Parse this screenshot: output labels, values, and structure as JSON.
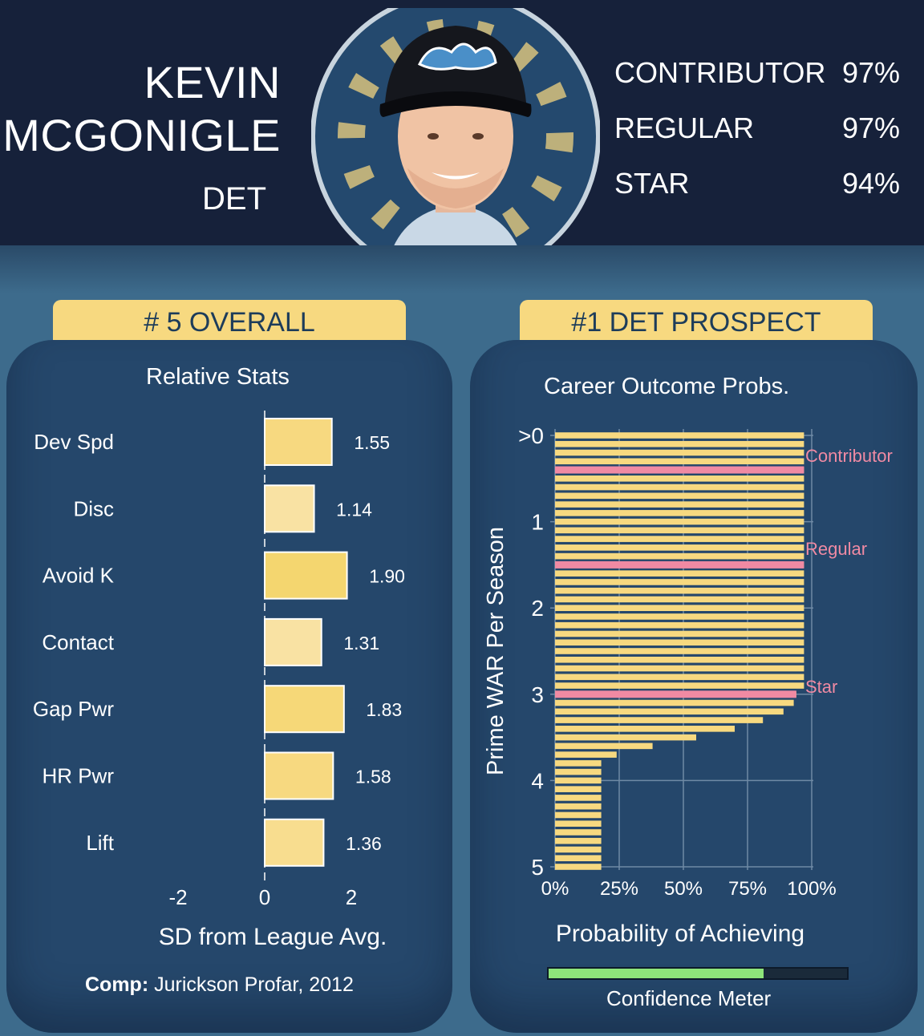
{
  "player": {
    "first_name": "KEVIN",
    "last_name": "MCGONIGLE",
    "team": "DET"
  },
  "outcome_probs": [
    {
      "label": "CONTRIBUTOR",
      "value": "97%"
    },
    {
      "label": "REGULAR",
      "value": "97%"
    },
    {
      "label": "STAR",
      "value": "94%"
    }
  ],
  "tabs": {
    "overall": "# 5 OVERALL",
    "team_rank": "#1 DET PROSPECT"
  },
  "comp": {
    "label": "Comp:",
    "value": "Jurickson Profar, 2012"
  },
  "confidence": {
    "label": "Confidence Meter",
    "value": 0.72
  },
  "colors": {
    "header_bg": "#16213a",
    "card_bg": "#25476b",
    "page_bg": "#3d6b8c",
    "bar_yellow": "#f7d980",
    "threshold_pink": "#f08aa3",
    "meter_green": "#8ee57a"
  },
  "chart_data": [
    {
      "type": "bar",
      "orientation": "horizontal",
      "title": "Relative Stats",
      "xlabel": "SD from League Avg.",
      "categories": [
        "Dev Spd",
        "Disc",
        "Avoid K",
        "Contact",
        "Gap Pwr",
        "HR Pwr",
        "Lift"
      ],
      "values": [
        1.55,
        1.14,
        1.9,
        1.31,
        1.83,
        1.58,
        1.36
      ],
      "value_labels": [
        "1.55",
        "1.14",
        "1.90",
        "1.31",
        "1.83",
        "1.58",
        "1.36"
      ],
      "xticks": [
        "-2",
        "0",
        "2"
      ],
      "xlim": [
        -2,
        2
      ],
      "bar_colors": [
        "#f7d980",
        "#f9e2a3",
        "#f4d66f",
        "#f9e2a3",
        "#f6d878",
        "#f7d980",
        "#f8dd8f"
      ],
      "grid": false
    },
    {
      "type": "bar",
      "orientation": "horizontal",
      "title": "Career Outcome Probs.",
      "xlabel": "Probability of Achieving",
      "ylabel": "Prime WAR Per Season",
      "xticks": [
        "0%",
        "25%",
        "50%",
        "75%",
        "100%"
      ],
      "yticks": [
        ">0",
        "1",
        "2",
        "3",
        "4",
        "5"
      ],
      "xlim": [
        0,
        1
      ],
      "ylim": [
        0,
        5
      ],
      "war": [
        0,
        0.1,
        0.2,
        0.3,
        0.4,
        0.5,
        0.6,
        0.7,
        0.8,
        0.9,
        1.0,
        1.1,
        1.2,
        1.3,
        1.4,
        1.5,
        1.6,
        1.7,
        1.8,
        1.9,
        2.0,
        2.1,
        2.2,
        2.3,
        2.4,
        2.5,
        2.6,
        2.7,
        2.8,
        2.9,
        3.0,
        3.1,
        3.2,
        3.3,
        3.4,
        3.5,
        3.6,
        3.7,
        3.8,
        3.9,
        4.0,
        4.1,
        4.2,
        4.3,
        4.4,
        4.5,
        4.6,
        4.7,
        4.8,
        4.9,
        5.0
      ],
      "probability": [
        0.97,
        0.97,
        0.97,
        0.97,
        0.97,
        0.97,
        0.97,
        0.97,
        0.97,
        0.97,
        0.97,
        0.97,
        0.97,
        0.97,
        0.97,
        0.97,
        0.97,
        0.97,
        0.97,
        0.97,
        0.97,
        0.97,
        0.97,
        0.97,
        0.97,
        0.97,
        0.97,
        0.97,
        0.97,
        0.97,
        0.94,
        0.93,
        0.89,
        0.81,
        0.7,
        0.55,
        0.38,
        0.24,
        0.18,
        0.18,
        0.18,
        0.18,
        0.18,
        0.18,
        0.18,
        0.18,
        0.18,
        0.18,
        0.18,
        0.18,
        0.18
      ],
      "thresholds": [
        {
          "name": "Contributor",
          "war": 0.4
        },
        {
          "name": "Regular",
          "war": 1.5
        },
        {
          "name": "Star",
          "war": 3.0
        }
      ],
      "grid": true
    }
  ]
}
